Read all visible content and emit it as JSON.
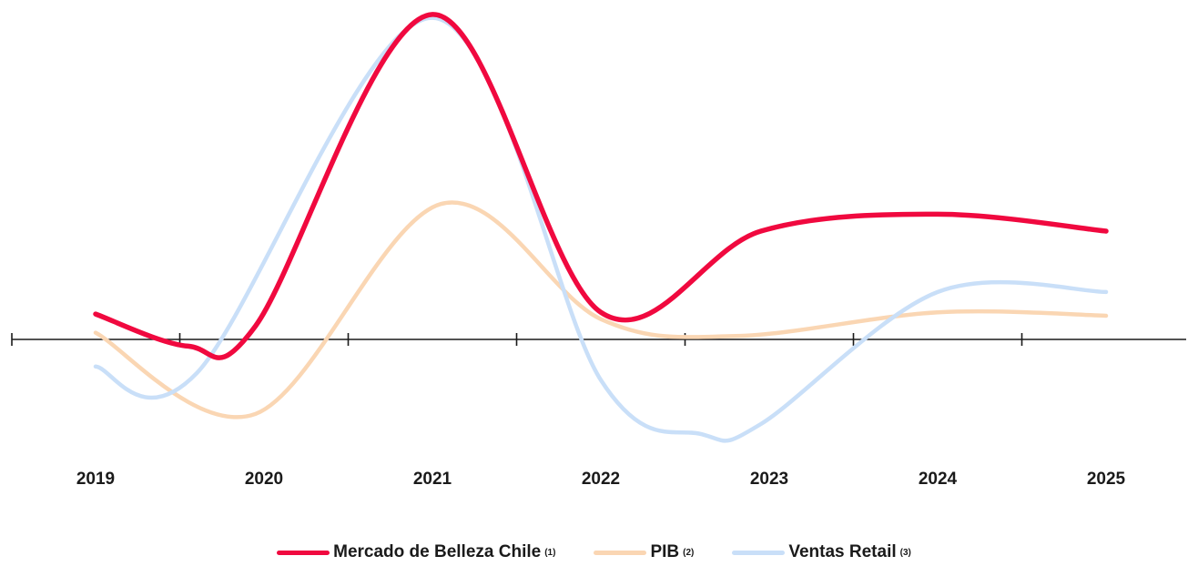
{
  "chart_data": {
    "type": "line",
    "categories": [
      "2019",
      "2020",
      "2021",
      "2022",
      "2023",
      "2024",
      "2025"
    ],
    "series": [
      {
        "name": "Mercado de Belleza Chile",
        "note": "(1)",
        "color": "#f0093f",
        "x": [
          2019,
          2019.55,
          2019.95,
          2021,
          2022,
          2022.95,
          2024.0,
          2025
        ],
        "y": [
          0.75,
          -0.2,
          0.4,
          9.6,
          0.8,
          3.2,
          3.7,
          3.2
        ]
      },
      {
        "name": "PIB",
        "note": "(2)",
        "color": "#fad6b3",
        "x": [
          2019,
          2019.95,
          2021.05,
          2022.0,
          2022.8,
          2024.0,
          2025
        ],
        "y": [
          0.2,
          -2.2,
          4.0,
          0.6,
          0.1,
          0.8,
          0.7
        ]
      },
      {
        "name": "Ventas Retail",
        "note": "(3)",
        "color": "#c9dff8",
        "x": [
          2019,
          2019.6,
          2021,
          2022.0,
          2022.6,
          2022.95,
          2024.0,
          2025
        ],
        "y": [
          -0.8,
          -1.0,
          9.5,
          -1.2,
          -2.8,
          -2.5,
          1.4,
          1.4
        ]
      }
    ],
    "ylim": [
      -3.5,
      10
    ],
    "grid": false,
    "legend_position": "bottom-center"
  }
}
